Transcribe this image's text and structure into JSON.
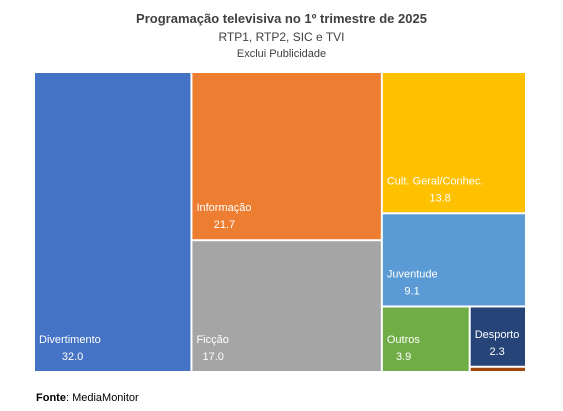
{
  "chart_data": {
    "type": "treemap",
    "title": "Programação televisiva no 1º trimestre de 2025",
    "subtitle": "RTP1, RTP2, SIC e TVI",
    "note": "Exclui Publicidade",
    "source_label": "Fonte",
    "source_value": ": MediaMonitor",
    "items": [
      {
        "name": "Divertimento",
        "value": 32.0,
        "value_label": "32.0",
        "color": "#4472C4"
      },
      {
        "name": "Informação",
        "value": 21.7,
        "value_label": "21.7",
        "color": "#ED7D31"
      },
      {
        "name": "Ficção",
        "value": 17.0,
        "value_label": "17.0",
        "color": "#A5A5A5"
      },
      {
        "name": "Cult. Geral/Conhec.",
        "value": 13.8,
        "value_label": "13.8",
        "color": "#FFC000"
      },
      {
        "name": "Juventude",
        "value": 9.1,
        "value_label": "9.1",
        "color": "#5B9BD5"
      },
      {
        "name": "Outros",
        "value": 3.9,
        "value_label": "3.9",
        "color": "#70AD47"
      },
      {
        "name": "Desporto",
        "value": 2.3,
        "value_label": "2.3",
        "color": "#264478"
      },
      {
        "name": "",
        "value": 0.2,
        "value_label": "",
        "color": "#9E480E"
      }
    ]
  }
}
